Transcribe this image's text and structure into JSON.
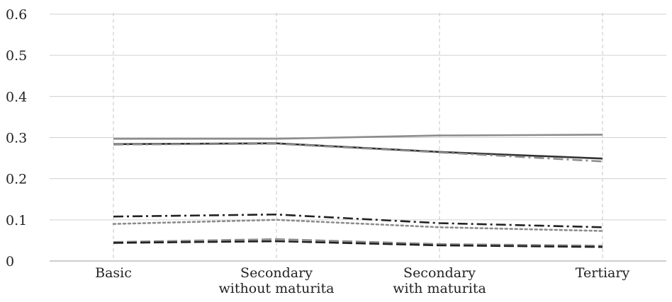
{
  "chart_data": {
    "type": "line",
    "title": "",
    "xlabel": "",
    "ylabel": "",
    "categories": [
      [
        "Basic"
      ],
      [
        "Secondary",
        "without maturita"
      ],
      [
        "Secondary",
        "with maturita"
      ],
      [
        "Tertiary"
      ]
    ],
    "ylim": [
      0,
      0.6
    ],
    "yticks": [
      0,
      0.1,
      0.2,
      0.3,
      0.4,
      0.5,
      0.6
    ],
    "ytick_labels": [
      "0",
      "0.1",
      "0.2",
      "0.3",
      "0.4",
      "0.5",
      "0.6"
    ],
    "grid": {
      "horizontal": true,
      "vertical": true,
      "vertical_style": "dashed"
    },
    "legend": "none",
    "series": [
      {
        "values": [
          0.297,
          0.297,
          0.305,
          0.307
        ],
        "color": "#8c8c8c",
        "style": "solid"
      },
      {
        "values": [
          0.284,
          0.286,
          0.265,
          0.249
        ],
        "color": "#333333",
        "style": "solid"
      },
      {
        "values": [
          0.283,
          0.285,
          0.264,
          0.242
        ],
        "color": "#8c8c8c",
        "style": "dashdot"
      },
      {
        "values": [
          0.108,
          0.113,
          0.092,
          0.082
        ],
        "color": "#222222",
        "style": "dashdot"
      },
      {
        "values": [
          0.09,
          0.1,
          0.082,
          0.073
        ],
        "color": "#8c8c8c",
        "style": "dotted"
      },
      {
        "values": [
          0.046,
          0.053,
          0.041,
          0.037
        ],
        "color": "#8c8c8c",
        "style": "dashed"
      },
      {
        "values": [
          0.044,
          0.048,
          0.038,
          0.034
        ],
        "color": "#222222",
        "style": "dashed"
      }
    ]
  }
}
